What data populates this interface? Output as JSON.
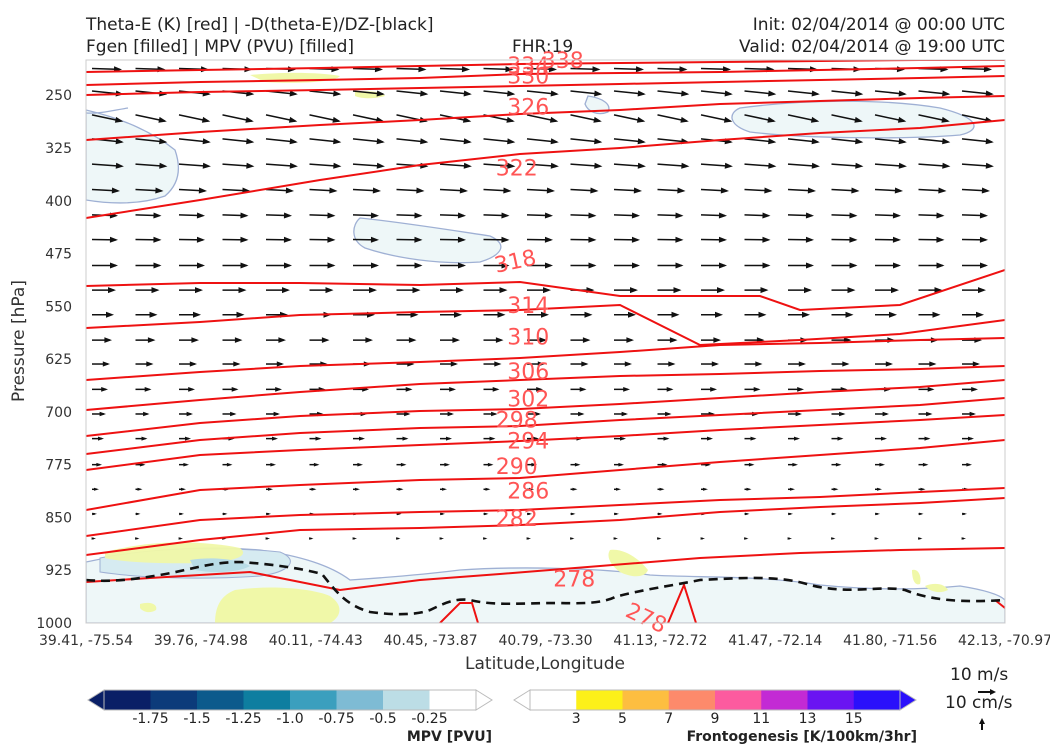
{
  "header": {
    "title_left_1": "Theta-E (K) [red] | -D(theta-E)/DZ-[black]",
    "title_left_2": "Fgen [filled] | MPV (PVU) [filled]",
    "fhr": "FHR:19",
    "init": "Init: 02/04/2014 @ 00:00 UTC",
    "valid": "Valid: 02/04/2014 @ 19:00 UTC"
  },
  "axes": {
    "xlabel": "Latitude,Longitude",
    "ylabel": "Pressure [hPa]",
    "xticks": [
      "39.41, -75.54",
      "39.76, -74.98",
      "40.11, -74.43",
      "40.45, -73.87",
      "40.79, -73.30",
      "41.13, -72.72",
      "41.47, -72.14",
      "41.80, -71.56",
      "42.13, -70.97"
    ],
    "yticks": [
      "250",
      "325",
      "400",
      "475",
      "550",
      "625",
      "700",
      "775",
      "850",
      "925",
      "1000"
    ]
  },
  "chart_data": {
    "type": "cross-section",
    "x": [
      "39.41, -75.54",
      "39.76, -74.98",
      "40.11, -74.43",
      "40.45, -73.87",
      "40.79, -73.30",
      "41.13, -72.72",
      "41.47, -72.14",
      "41.80, -71.56",
      "42.13, -70.97"
    ],
    "ylim": [
      1000,
      200
    ],
    "y_reversed": true,
    "theta_e_levels": [
      278,
      282,
      286,
      290,
      294,
      298,
      302,
      306,
      310,
      314,
      318,
      322,
      326,
      330,
      334,
      338
    ],
    "theta_e_labels": [
      {
        "text": "338",
        "x": 5.15,
        "p": 200
      },
      {
        "text": "334",
        "x": 4.85,
        "p": 207
      },
      {
        "text": "330",
        "x": 4.85,
        "p": 222
      },
      {
        "text": "326",
        "x": 4.85,
        "p": 266
      },
      {
        "text": "322",
        "x": 4.75,
        "p": 353
      },
      {
        "text": "318",
        "x": 4.75,
        "p": 485
      },
      {
        "text": "314",
        "x": 4.85,
        "p": 548
      },
      {
        "text": "310",
        "x": 4.85,
        "p": 593
      },
      {
        "text": "306",
        "x": 4.85,
        "p": 642
      },
      {
        "text": "302",
        "x": 4.85,
        "p": 681
      },
      {
        "text": "298",
        "x": 4.75,
        "p": 711
      },
      {
        "text": "294",
        "x": 4.85,
        "p": 741
      },
      {
        "text": "290",
        "x": 4.75,
        "p": 777
      },
      {
        "text": "286",
        "x": 4.85,
        "p": 812
      },
      {
        "text": "282",
        "x": 4.75,
        "p": 851
      },
      {
        "text": "278",
        "x": 5.25,
        "p": 937
      },
      {
        "text": "278",
        "x": 5.85,
        "p": 991
      }
    ],
    "mpv_colorbar": {
      "title": "MPV [PVU]",
      "labels": [
        "-1.75",
        "-1.5",
        "-1.25",
        "-1.0",
        "-0.75",
        "-0.5",
        "-0.25"
      ],
      "colors": [
        "#0a1f66",
        "#0c3b7a",
        "#0b5a8c",
        "#0e7ea0",
        "#3b9fbe",
        "#7ebbd4",
        "#bcdde6",
        "#ffffff"
      ]
    },
    "fgen_colorbar": {
      "title": "Frontogenesis [K/100km/3hr]",
      "labels": [
        "3",
        "5",
        "7",
        "9",
        "11",
        "13",
        "15"
      ],
      "colors": [
        "#ffffff",
        "#fcf019",
        "#fdbe40",
        "#fd8a6b",
        "#fc5b9f",
        "#c32ad4",
        "#6a14f2",
        "#2a10fb"
      ]
    },
    "wind_key": {
      "label1": "10 m/s",
      "label2": "10 cm/s"
    }
  }
}
